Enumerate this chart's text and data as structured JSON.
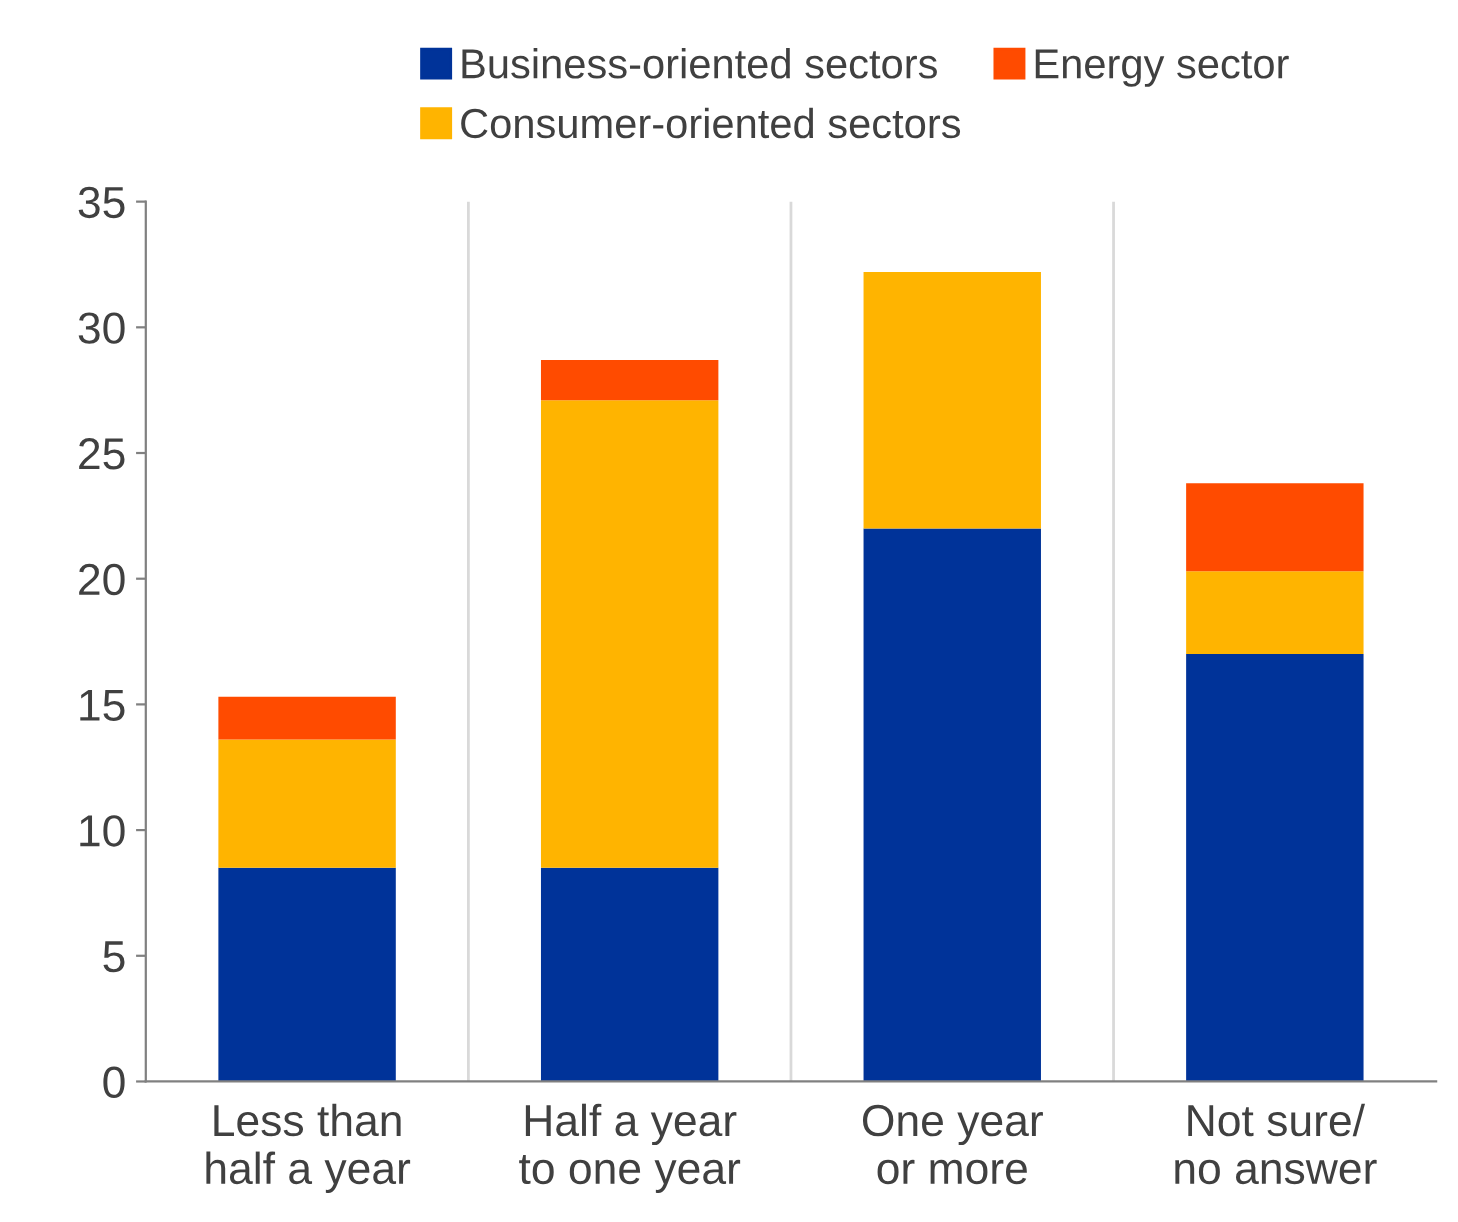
{
  "chart_data": {
    "type": "bar",
    "stacked": true,
    "categories": [
      "Less than\nhalf a year",
      "Half a year\nto one year",
      "One year\nor more",
      "Not sure/\nno answer"
    ],
    "series": [
      {
        "name": "Business-oriented sectors",
        "color": "#003399",
        "values": [
          8.5,
          8.5,
          22.0,
          17.0
        ]
      },
      {
        "name": "Consumer-oriented sectors",
        "color": "#ffb400",
        "values": [
          5.1,
          18.6,
          10.2,
          3.3
        ]
      },
      {
        "name": "Energy sector",
        "color": "#ff4b00",
        "values": [
          1.7,
          1.6,
          0,
          3.5
        ]
      }
    ],
    "ylim": [
      0,
      35
    ],
    "yticks": [
      0,
      5,
      10,
      15,
      20,
      25,
      30,
      35
    ],
    "grid": "x",
    "legend": "top"
  }
}
